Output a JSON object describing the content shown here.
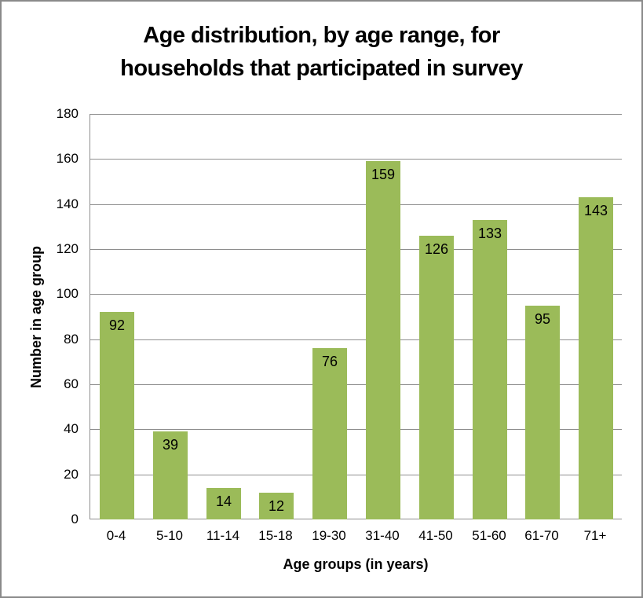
{
  "window": {
    "background": "#ffffff",
    "border_color": "#8a8a8a"
  },
  "chart_data": {
    "type": "bar",
    "title": "Age distribution, by age range, for households that participated in survey",
    "categories": [
      "0-4",
      "5-10",
      "11-14",
      "15-18",
      "19-30",
      "31-40",
      "41-50",
      "51-60",
      "61-70",
      "71+"
    ],
    "values": [
      92,
      39,
      14,
      12,
      76,
      159,
      126,
      133,
      95,
      143
    ],
    "xlabel": "Age groups (in years)",
    "ylabel": "Number in age group",
    "ylim": [
      0,
      180
    ],
    "ytick_step": 20,
    "yticks": [
      0,
      20,
      40,
      60,
      80,
      100,
      120,
      140,
      160,
      180
    ],
    "grid": true,
    "legend": false,
    "data_labels_position": "inside-end",
    "bar_color": "#9bbb59",
    "gridline_color": "#8e8e8e",
    "axis_color": "#8e8e8e",
    "text_color": "#000000"
  }
}
